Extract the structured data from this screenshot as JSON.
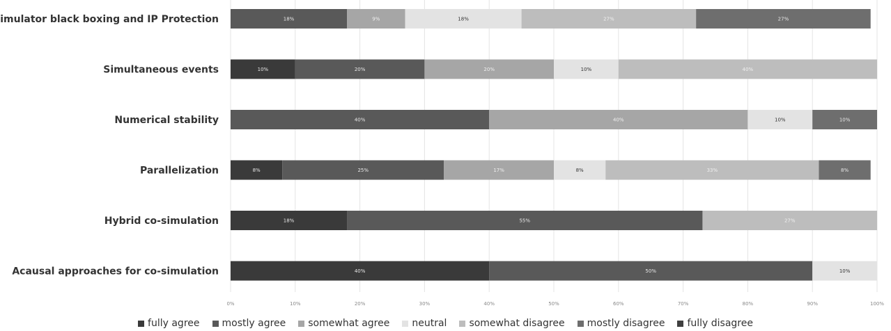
{
  "chart_data": {
    "type": "bar",
    "orientation": "horizontal",
    "stacked": true,
    "title": "",
    "xlabel": "",
    "ylabel": "",
    "xlim": [
      0,
      100
    ],
    "x_ticks": [
      "0%",
      "10%",
      "20%",
      "30%",
      "40%",
      "50%",
      "60%",
      "70%",
      "80%",
      "90%",
      "100%"
    ],
    "grid": "vertical",
    "legend_position": "bottom",
    "categories": [
      "Simulator black boxing and IP Protection",
      "Simultaneous events",
      "Numerical stability",
      "Parallelization",
      "Hybrid co-simulation",
      "Acausal approaches for co-simulation"
    ],
    "series": [
      {
        "name": "fully agree",
        "color": "#3a3a3a",
        "text_color": "#e8e8e8",
        "values": [
          0,
          10,
          0,
          8,
          18,
          40
        ],
        "labels": [
          "",
          "10%",
          "",
          "8%",
          "18%",
          "40%"
        ]
      },
      {
        "name": "mostly agree",
        "color": "#595959",
        "text_color": "#e8e8e8",
        "values": [
          18,
          20,
          40,
          25,
          55,
          50
        ],
        "labels": [
          "18%",
          "20%",
          "40%",
          "25%",
          "55%",
          "50%"
        ]
      },
      {
        "name": "somewhat agree",
        "color": "#a6a6a6",
        "text_color": "#f0f0f0",
        "values": [
          9,
          20,
          40,
          17,
          0,
          0
        ],
        "labels": [
          "9%",
          "20%",
          "40%",
          "17%",
          "",
          ""
        ]
      },
      {
        "name": "neutral",
        "color": "#e3e3e3",
        "text_color": "#333333",
        "values": [
          18,
          10,
          10,
          8,
          0,
          10
        ],
        "labels": [
          "18%",
          "10%",
          "10%",
          "8%",
          "",
          "10%"
        ]
      },
      {
        "name": "somewhat disagree",
        "color": "#bdbdbd",
        "text_color": "#f0f0f0",
        "values": [
          27,
          40,
          0,
          33,
          27,
          0
        ],
        "labels": [
          "27%",
          "40%",
          "",
          "33%",
          "27%",
          ""
        ]
      },
      {
        "name": "mostly disagree",
        "color": "#6e6e6e",
        "text_color": "#e8e8e8",
        "values": [
          27,
          0,
          10,
          8,
          0,
          0
        ],
        "labels": [
          "27%",
          "",
          "10%",
          "8%",
          "",
          ""
        ]
      },
      {
        "name": "fully disagree",
        "color": "#404040",
        "text_color": "#e8e8e8",
        "values": [
          0,
          0,
          0,
          0,
          0,
          0
        ],
        "labels": [
          "",
          "",
          "",
          "",
          "",
          ""
        ]
      }
    ]
  }
}
